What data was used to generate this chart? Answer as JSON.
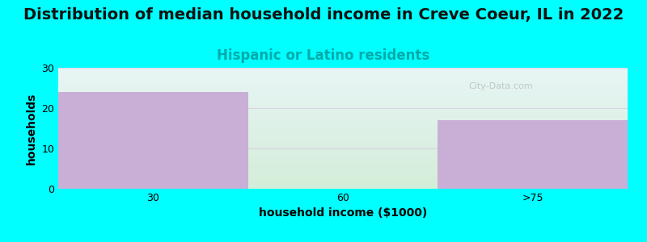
{
  "title": "Distribution of median household income in Creve Coeur, IL in 2022",
  "subtitle": "Hispanic or Latino residents",
  "xlabel": "household income ($1000)",
  "ylabel": "households",
  "categories": [
    "30",
    "60",
    ">75"
  ],
  "values": [
    24,
    0,
    17
  ],
  "bar_colors": [
    "#c9aed6",
    "#d8ecd8",
    "#c9aed6"
  ],
  "ylim": [
    0,
    30
  ],
  "yticks": [
    0,
    10,
    20,
    30
  ],
  "background_color": "#00ffff",
  "plot_bg_top": "#e8f5f5",
  "plot_bg_bottom": "#d4edda",
  "title_fontsize": 14,
  "subtitle_fontsize": 12,
  "subtitle_color": "#00aaaa",
  "axis_label_fontsize": 10,
  "tick_fontsize": 9,
  "watermark": "City-Data.com",
  "grid_color": "#d8b0d8"
}
